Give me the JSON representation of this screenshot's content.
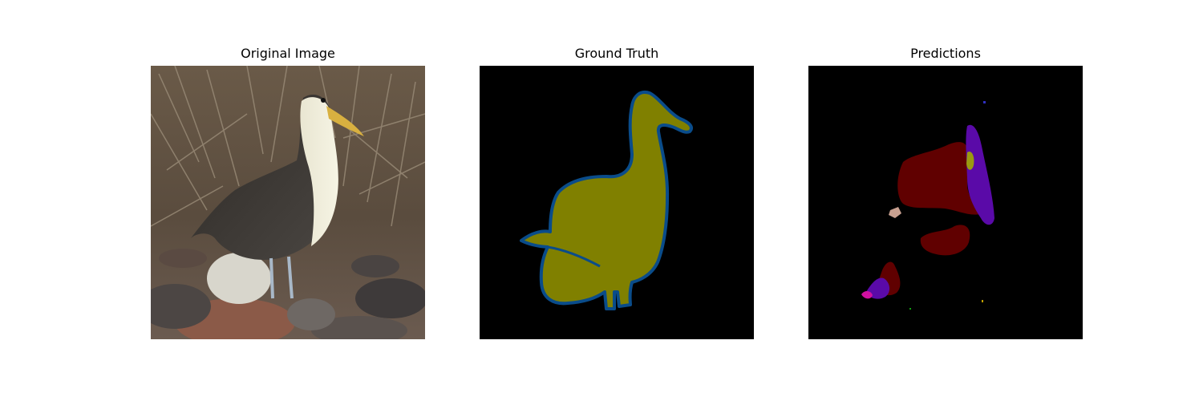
{
  "panels": [
    {
      "title": "Original Image"
    },
    {
      "title": "Ground Truth"
    },
    {
      "title": "Predictions"
    }
  ],
  "colors": {
    "background": "#000000",
    "gt_fill": "#808000",
    "gt_outline": "#0a4c8a",
    "pred_dark_red": "#600000",
    "pred_purple": "#5a0aa8",
    "pred_olive": "#9a9a10",
    "pred_pink": "#c8a090",
    "pred_magenta": "#d010a0"
  }
}
